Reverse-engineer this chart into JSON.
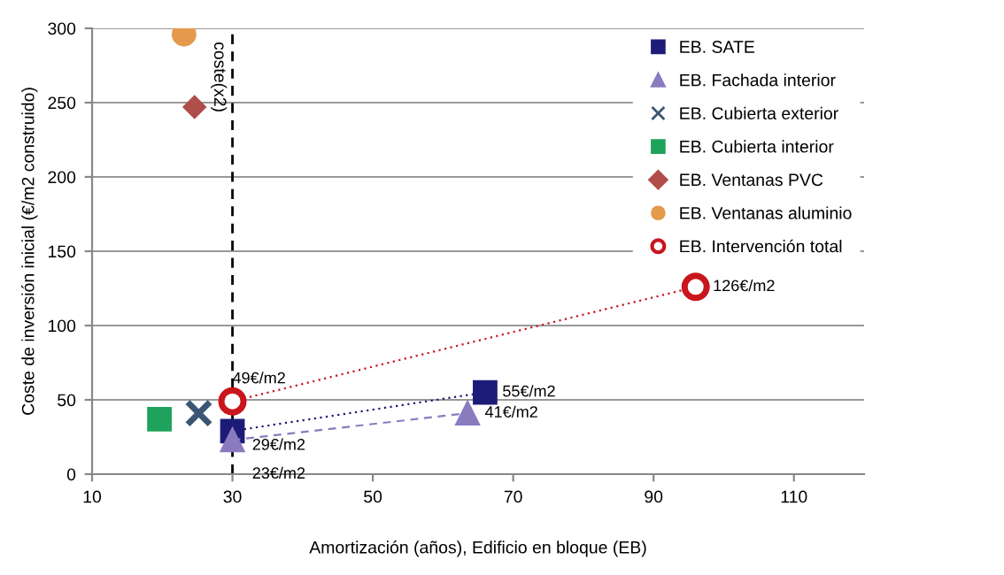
{
  "chart_data": {
    "type": "scatter",
    "xlabel": "Amortización (años), Edificio en bloque (EB)",
    "ylabel": "Coste de inversión inicial (€/m2 construido)",
    "xlim": [
      10,
      120
    ],
    "ylim": [
      0,
      300
    ],
    "xticks": [
      10,
      30,
      50,
      70,
      90,
      110
    ],
    "yticks": [
      0,
      50,
      100,
      150,
      200,
      250,
      300
    ],
    "grid": "y",
    "legend": "top right",
    "series": [
      {
        "name": "EB. SATE",
        "type": "line",
        "line_style": "dotted",
        "marker": "square",
        "color": "#1c1c78",
        "x": [
          30,
          66
        ],
        "values": [
          29,
          55
        ]
      },
      {
        "name": "EB. Fachada interior",
        "type": "line",
        "line_style": "dashed",
        "marker": "triangle",
        "color": "#8a7bbf",
        "x": [
          30,
          63.5
        ],
        "values": [
          23,
          41
        ]
      },
      {
        "name": "EB. Cubierta exterior",
        "marker": "cross",
        "color": "#3b5674",
        "x": [
          25.2
        ],
        "values": [
          41
        ]
      },
      {
        "name": "EB. Cubierta interior",
        "marker": "square",
        "color": "#1fa35c",
        "x": [
          19.6
        ],
        "values": [
          37
        ]
      },
      {
        "name": "EB. Ventanas PVC",
        "marker": "diamond",
        "color": "#b04e4a",
        "x": [
          24.6
        ],
        "values": [
          247
        ]
      },
      {
        "name": "EB. Ventanas aluminio",
        "marker": "circle",
        "color": "#e49a4c",
        "x": [
          23.1
        ],
        "values": [
          296
        ]
      },
      {
        "name": "EB. Intervención total",
        "type": "line",
        "line_style": "dotted",
        "marker": "circle",
        "color": "#c8161c",
        "x": [
          30,
          96
        ],
        "values": [
          49,
          126
        ]
      }
    ],
    "ref_lines": [
      {
        "axis": "x",
        "value": 30,
        "label": "coste(x2)",
        "color": "#000000",
        "line_style": "dashed"
      }
    ],
    "annotations": [
      {
        "text": "49€/m2",
        "x": 30,
        "y": 49
      },
      {
        "text": "29€/m2",
        "x": 30,
        "y": 29
      },
      {
        "text": "23€/m2",
        "x": 30,
        "y": 23
      },
      {
        "text": "55€/m2",
        "x": 66,
        "y": 55
      },
      {
        "text": "41€/m2",
        "x": 63.5,
        "y": 41
      },
      {
        "text": "126€/m2",
        "x": 96,
        "y": 126
      }
    ]
  }
}
